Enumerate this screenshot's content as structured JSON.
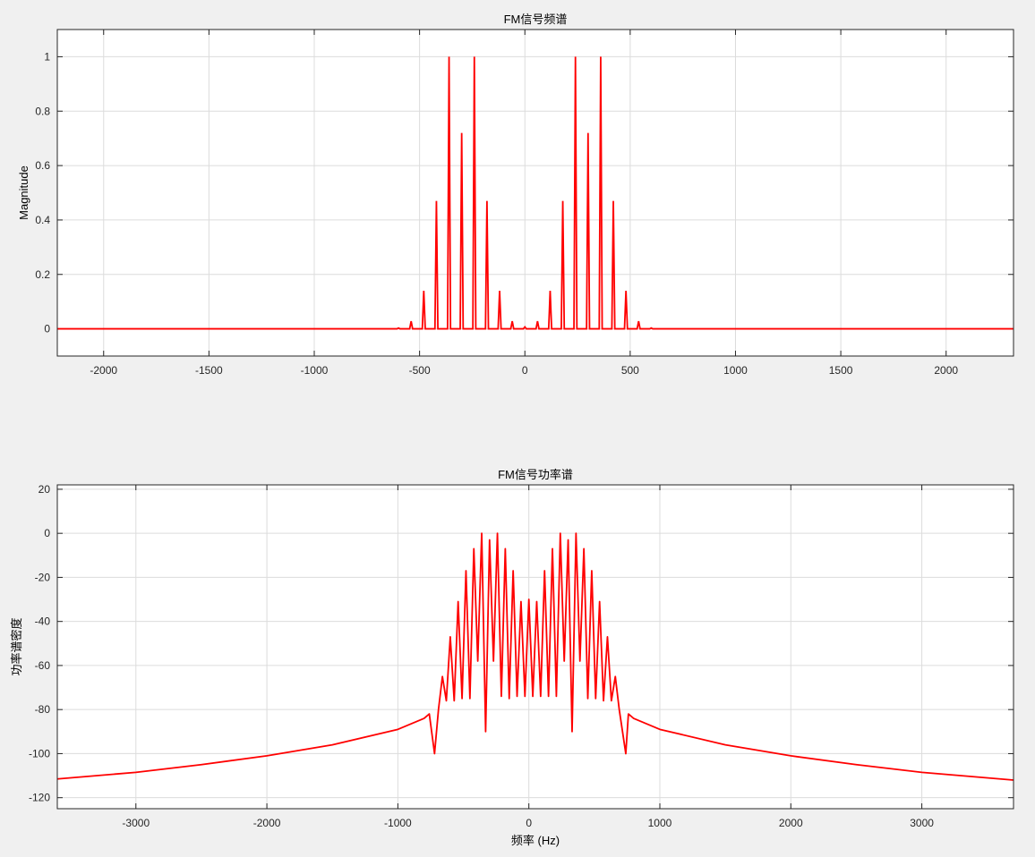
{
  "chart_data": [
    {
      "type": "line",
      "title": "FM信号频谱",
      "xlabel": "",
      "ylabel": "Magnitude",
      "xlim": [
        -2220,
        2320
      ],
      "ylim": [
        -0.1,
        1.1
      ],
      "xticks": [
        -2000,
        -1500,
        -1000,
        -500,
        0,
        500,
        1000,
        1500,
        2000
      ],
      "yticks": [
        0,
        0.2,
        0.4,
        0.6,
        0.8,
        1
      ],
      "grid": true,
      "color": "#ff0000",
      "baseline": 0,
      "peaks": [
        {
          "x": -600,
          "y": 0.003
        },
        {
          "x": -540,
          "y": 0.028
        },
        {
          "x": -480,
          "y": 0.14
        },
        {
          "x": -420,
          "y": 0.47
        },
        {
          "x": -360,
          "y": 1.0
        },
        {
          "x": -300,
          "y": 0.72
        },
        {
          "x": -240,
          "y": 1.0
        },
        {
          "x": -180,
          "y": 0.47
        },
        {
          "x": -120,
          "y": 0.14
        },
        {
          "x": -60,
          "y": 0.028
        },
        {
          "x": 0,
          "y": 0.007
        },
        {
          "x": 60,
          "y": 0.028
        },
        {
          "x": 120,
          "y": 0.14
        },
        {
          "x": 180,
          "y": 0.47
        },
        {
          "x": 240,
          "y": 1.0
        },
        {
          "x": 300,
          "y": 0.72
        },
        {
          "x": 360,
          "y": 1.0
        },
        {
          "x": 420,
          "y": 0.47
        },
        {
          "x": 480,
          "y": 0.14
        },
        {
          "x": 540,
          "y": 0.028
        },
        {
          "x": 600,
          "y": 0.003
        }
      ]
    },
    {
      "type": "line",
      "title": "FM信号功率谱",
      "xlabel": "频率 (Hz)",
      "ylabel": "功率谱密度",
      "xlim": [
        -3600,
        3700
      ],
      "ylim": [
        -125,
        22
      ],
      "xticks": [
        -3000,
        -2000,
        -1000,
        0,
        1000,
        2000,
        3000
      ],
      "yticks": [
        -120,
        -100,
        -80,
        -60,
        -40,
        -20,
        0,
        20
      ],
      "grid": true,
      "color": "#ff0000",
      "envelope": [
        {
          "x": -3600,
          "y": -111.5
        },
        {
          "x": -3000,
          "y": -108.5
        },
        {
          "x": -2500,
          "y": -105
        },
        {
          "x": -2000,
          "y": -101
        },
        {
          "x": -1500,
          "y": -96
        },
        {
          "x": -1000,
          "y": -89
        },
        {
          "x": -800,
          "y": -84
        },
        {
          "x": -760,
          "y": -82
        },
        {
          "x": 760,
          "y": -82
        },
        {
          "x": 800,
          "y": -84
        },
        {
          "x": 1000,
          "y": -89
        },
        {
          "x": 1500,
          "y": -96
        },
        {
          "x": 2000,
          "y": -101
        },
        {
          "x": 2500,
          "y": -105
        },
        {
          "x": 3000,
          "y": -108.5
        },
        {
          "x": 3700,
          "y": -112
        }
      ],
      "peaks": [
        {
          "x": -660,
          "y": -65
        },
        {
          "x": -600,
          "y": -47
        },
        {
          "x": -540,
          "y": -31
        },
        {
          "x": -480,
          "y": -17
        },
        {
          "x": -420,
          "y": -7
        },
        {
          "x": -360,
          "y": 0
        },
        {
          "x": -300,
          "y": -3
        },
        {
          "x": -240,
          "y": 0
        },
        {
          "x": -180,
          "y": -7
        },
        {
          "x": -120,
          "y": -17
        },
        {
          "x": -60,
          "y": -31
        },
        {
          "x": 0,
          "y": -30
        },
        {
          "x": 60,
          "y": -31
        },
        {
          "x": 120,
          "y": -17
        },
        {
          "x": 180,
          "y": -7
        },
        {
          "x": 240,
          "y": 0
        },
        {
          "x": 300,
          "y": -3
        },
        {
          "x": 360,
          "y": 0
        },
        {
          "x": 420,
          "y": -7
        },
        {
          "x": 480,
          "y": -17
        },
        {
          "x": 540,
          "y": -31
        },
        {
          "x": 600,
          "y": -47
        },
        {
          "x": 660,
          "y": -65
        }
      ],
      "valleys": [
        {
          "x": -720,
          "y": -100
        },
        {
          "x": -690,
          "y": -80
        },
        {
          "x": -630,
          "y": -76
        },
        {
          "x": -570,
          "y": -76
        },
        {
          "x": -510,
          "y": -75
        },
        {
          "x": -450,
          "y": -75
        },
        {
          "x": -390,
          "y": -58
        },
        {
          "x": -330,
          "y": -90
        },
        {
          "x": -270,
          "y": -58
        },
        {
          "x": -210,
          "y": -74
        },
        {
          "x": -150,
          "y": -75
        },
        {
          "x": -90,
          "y": -74
        },
        {
          "x": -30,
          "y": -74
        },
        {
          "x": 30,
          "y": -74
        },
        {
          "x": 90,
          "y": -74
        },
        {
          "x": 150,
          "y": -74
        },
        {
          "x": 210,
          "y": -74
        },
        {
          "x": 270,
          "y": -58
        },
        {
          "x": 330,
          "y": -90
        },
        {
          "x": 390,
          "y": -58
        },
        {
          "x": 450,
          "y": -75
        },
        {
          "x": 510,
          "y": -75
        },
        {
          "x": 570,
          "y": -76
        },
        {
          "x": 630,
          "y": -76
        },
        {
          "x": 690,
          "y": -80
        },
        {
          "x": 740,
          "y": -100
        }
      ]
    }
  ]
}
